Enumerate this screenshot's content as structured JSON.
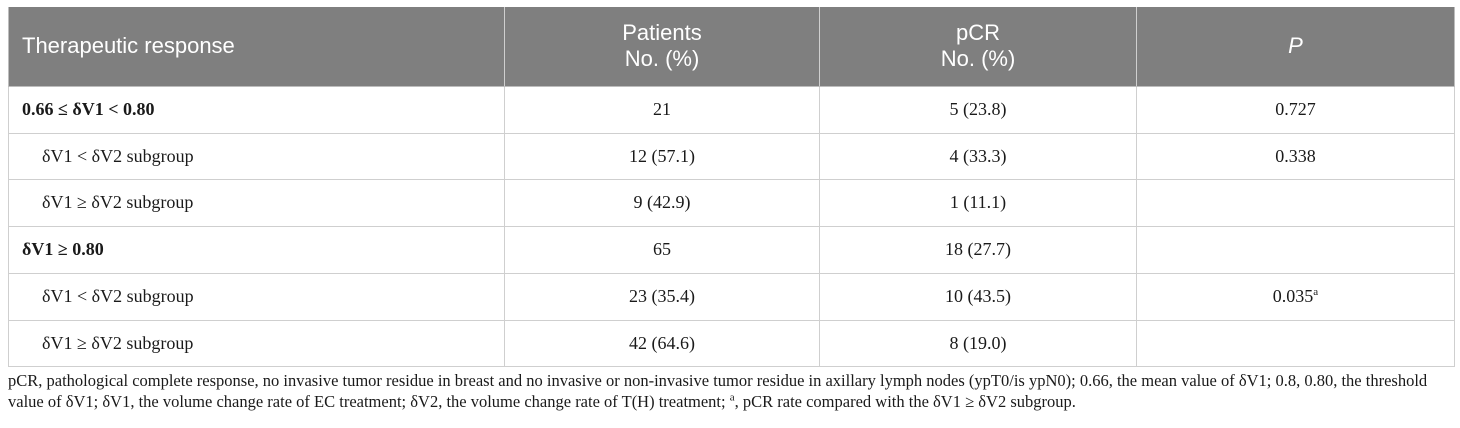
{
  "table": {
    "headers": [
      {
        "line1": "Therapeutic response",
        "line2": ""
      },
      {
        "line1": "Patients",
        "line2": "No. (%)"
      },
      {
        "line1": "pCR",
        "line2": "No. (%)"
      },
      {
        "line1": "P",
        "line2": ""
      }
    ],
    "rows": [
      {
        "label": "0.66 ≤ δV1 < 0.80",
        "patients": "21",
        "pcr": "5 (23.8)",
        "p": "0.727",
        "p_sup": ""
      },
      {
        "label": "δV1 < δV2 subgroup",
        "patients": "12 (57.1)",
        "pcr": "4 (33.3)",
        "p": "0.338",
        "p_sup": ""
      },
      {
        "label": "δV1 ≥ δV2 subgroup",
        "patients": "9 (42.9)",
        "pcr": "1 (11.1)",
        "p": "",
        "p_sup": ""
      },
      {
        "label": "δV1 ≥ 0.80",
        "patients": "65",
        "pcr": "18 (27.7)",
        "p": "",
        "p_sup": ""
      },
      {
        "label": "δV1 < δV2 subgroup",
        "patients": "23 (35.4)",
        "pcr": "10 (43.5)",
        "p": "0.035",
        "p_sup": "a"
      },
      {
        "label": "δV1 ≥ δV2 subgroup",
        "patients": "42 (64.6)",
        "pcr": "8 (19.0)",
        "p": "",
        "p_sup": ""
      }
    ]
  },
  "footnote": {
    "part1": "pCR, pathological complete response, no invasive tumor residue in breast and no invasive or non-invasive tumor residue in axillary lymph nodes (ypT0/is ypN0); 0.66, the mean value of δV1; 0.8, 0.80, the threshold value of δV1; δV1, the volume change rate of EC treatment; δV2, the volume change rate of T(H) treatment; ",
    "sup": "a",
    "part2": ", pCR rate compared with the δV1 ≥ δV2 subgroup."
  }
}
